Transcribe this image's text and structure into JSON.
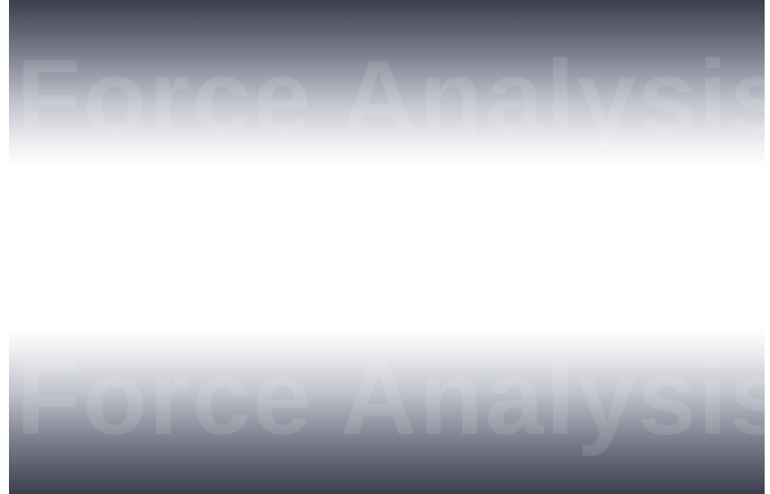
{
  "banner": {
    "top_text": "Force Analysis",
    "bottom_text": "Force Analysis"
  },
  "colors": {
    "band_dark": "#3b3e4d",
    "band_mid": "#767a89",
    "background": "#ffffff"
  }
}
